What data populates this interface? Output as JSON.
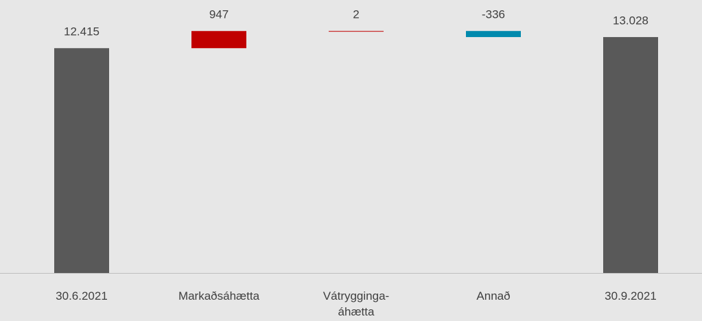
{
  "chart_data": {
    "type": "waterfall",
    "categories": [
      "30.6.2021",
      "Markaðsáhætta",
      "Vátrygginga-\náhætta",
      "Annað",
      "30.9.2021"
    ],
    "values": [
      12415,
      947,
      2,
      -336,
      13028
    ],
    "value_labels": [
      "12.415",
      "947",
      "2",
      "-336",
      "13.028"
    ],
    "measure": [
      "total",
      "relative",
      "relative",
      "relative",
      "total"
    ],
    "colors": [
      "#595959",
      "#c00000",
      "#c00000",
      "#0089ad",
      "#595959"
    ],
    "ylim": [
      0,
      15000
    ]
  }
}
